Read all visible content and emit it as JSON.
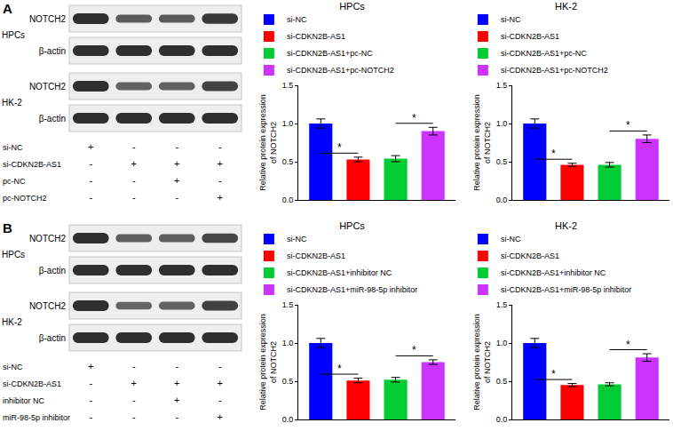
{
  "chart_data": [
    {
      "type": "bar",
      "title": "HPCs",
      "ylabel": "Relative protein expression\nof NOTCH2",
      "categories": [
        "si-NC",
        "si-CDKN2B-AS1",
        "si-CDKN2B-AS1+pc-NC",
        "si-CDKN2B-AS1+pc-NOTCH2"
      ],
      "values": [
        1.0,
        0.53,
        0.54,
        0.9
      ],
      "errors": [
        0.06,
        0.03,
        0.04,
        0.05
      ],
      "colors": [
        "#0000FF",
        "#FF0000",
        "#00CC33",
        "#CC33FF"
      ],
      "significance": [
        {
          "pair": [
            0,
            1
          ],
          "label": "*"
        },
        {
          "pair": [
            2,
            3
          ],
          "label": "*"
        }
      ],
      "ylim": [
        0,
        1.5
      ],
      "yticks": [
        {
          "value": 0,
          "label": "0.0"
        },
        0.5,
        {
          "value": 1,
          "label": "1.0"
        },
        {
          "value": 1.5,
          "label": "1.5"
        }
      ],
      "grid": false,
      "legend": "top",
      "tick_labels": "y"
    },
    {
      "type": "bar",
      "title": "HK-2",
      "ylabel": "Relative protein expression\nof NOTCH2",
      "categories": [
        "si-NC",
        "si-CDKN2B-AS1",
        "si-CDKN2B-AS1+pc-NC",
        "si-CDKN2B-AS1+pc-NOTCH2"
      ],
      "values": [
        1.0,
        0.46,
        0.46,
        0.8
      ],
      "errors": [
        0.06,
        0.02,
        0.03,
        0.05
      ],
      "colors": [
        "#0000FF",
        "#FF0000",
        "#00CC33",
        "#CC33FF"
      ],
      "significance": [
        {
          "pair": [
            0,
            1
          ],
          "label": "*"
        },
        {
          "pair": [
            2,
            3
          ],
          "label": "*"
        }
      ],
      "ylim": [
        0,
        1.5
      ],
      "yticks": [
        {
          "value": 0,
          "label": "0.0"
        },
        0.5,
        {
          "value": 1,
          "label": "1.0"
        },
        {
          "value": 1.5,
          "label": "1.5"
        }
      ],
      "grid": false,
      "legend": "top",
      "tick_labels": "y"
    },
    {
      "type": "bar",
      "title": "HPCs",
      "ylabel": "Relative protein expression\nof NOTCH2",
      "categories": [
        "si-NC",
        "si-CDKN2B-AS1",
        "si-CDKN2B-AS1+inhibitor NC",
        "si-CDKN2B-AS1+miR-98-5p inhibitor"
      ],
      "values": [
        1.0,
        0.51,
        0.52,
        0.75
      ],
      "errors": [
        0.06,
        0.03,
        0.03,
        0.03
      ],
      "colors": [
        "#0000FF",
        "#FF0000",
        "#00CC33",
        "#CC33FF"
      ],
      "significance": [
        {
          "pair": [
            0,
            1
          ],
          "label": "*"
        },
        {
          "pair": [
            2,
            3
          ],
          "label": "*"
        }
      ],
      "ylim": [
        0,
        1.5
      ],
      "yticks": [
        {
          "value": 0,
          "label": "0.0"
        },
        0.5,
        {
          "value": 1,
          "label": "1.0"
        },
        {
          "value": 1.5,
          "label": "1.5"
        }
      ],
      "grid": false,
      "legend": "top",
      "tick_labels": "y"
    },
    {
      "type": "bar",
      "title": "HK-2",
      "ylabel": "Relative protein expression\nof NOTCH2",
      "categories": [
        "si-NC",
        "si-CDKN2B-AS1",
        "si-CDKN2B-AS1+inhibitor NC",
        "si-CDKN2B-AS1+miR-98-5p inhibitor"
      ],
      "values": [
        1.0,
        0.45,
        0.46,
        0.81
      ],
      "errors": [
        0.06,
        0.02,
        0.02,
        0.05
      ],
      "colors": [
        "#0000FF",
        "#FF0000",
        "#00CC33",
        "#CC33FF"
      ],
      "significance": [
        {
          "pair": [
            0,
            1
          ],
          "label": "*"
        },
        {
          "pair": [
            2,
            3
          ],
          "label": "*"
        }
      ],
      "ylim": [
        0,
        1.5
      ],
      "yticks": [
        {
          "value": 0,
          "label": "0.0"
        },
        0.5,
        {
          "value": 1,
          "label": "1.0"
        },
        {
          "value": 1.5,
          "label": "1.5"
        }
      ],
      "grid": false,
      "legend": "top",
      "tick_labels": "y"
    }
  ],
  "blots": [
    {
      "panel": "A",
      "groups": [
        {
          "cell": "HPCs",
          "proteins": [
            "NOTCH2",
            "β-actin"
          ]
        },
        {
          "cell": "HK-2",
          "proteins": [
            "NOTCH2",
            "β-actin"
          ]
        }
      ],
      "conditions": [
        {
          "name": "si-NC",
          "marks": [
            "+",
            "-",
            "-",
            "-"
          ]
        },
        {
          "name": "si-CDKN2B-AS1",
          "marks": [
            "-",
            "+",
            "+",
            "+"
          ]
        },
        {
          "name": "pc-NC",
          "marks": [
            "-",
            "-",
            "+",
            "-"
          ]
        },
        {
          "name": "pc-NOTCH2",
          "marks": [
            "-",
            "-",
            "-",
            "+"
          ]
        }
      ]
    },
    {
      "panel": "B",
      "groups": [
        {
          "cell": "HPCs",
          "proteins": [
            "NOTCH2",
            "β-actin"
          ]
        },
        {
          "cell": "HK-2",
          "proteins": [
            "NOTCH2",
            "β-actin"
          ]
        }
      ],
      "conditions": [
        {
          "name": "si-NC",
          "marks": [
            "+",
            "-",
            "-",
            "-"
          ]
        },
        {
          "name": "si-CDKN2B-AS1",
          "marks": [
            "-",
            "+",
            "+",
            "+"
          ]
        },
        {
          "name": "inhibitor NC",
          "marks": [
            "-",
            "-",
            "+",
            "-"
          ]
        },
        {
          "name": "miR-98-5p inhibitor",
          "marks": [
            "-",
            "-",
            "-",
            "+"
          ]
        }
      ]
    }
  ]
}
